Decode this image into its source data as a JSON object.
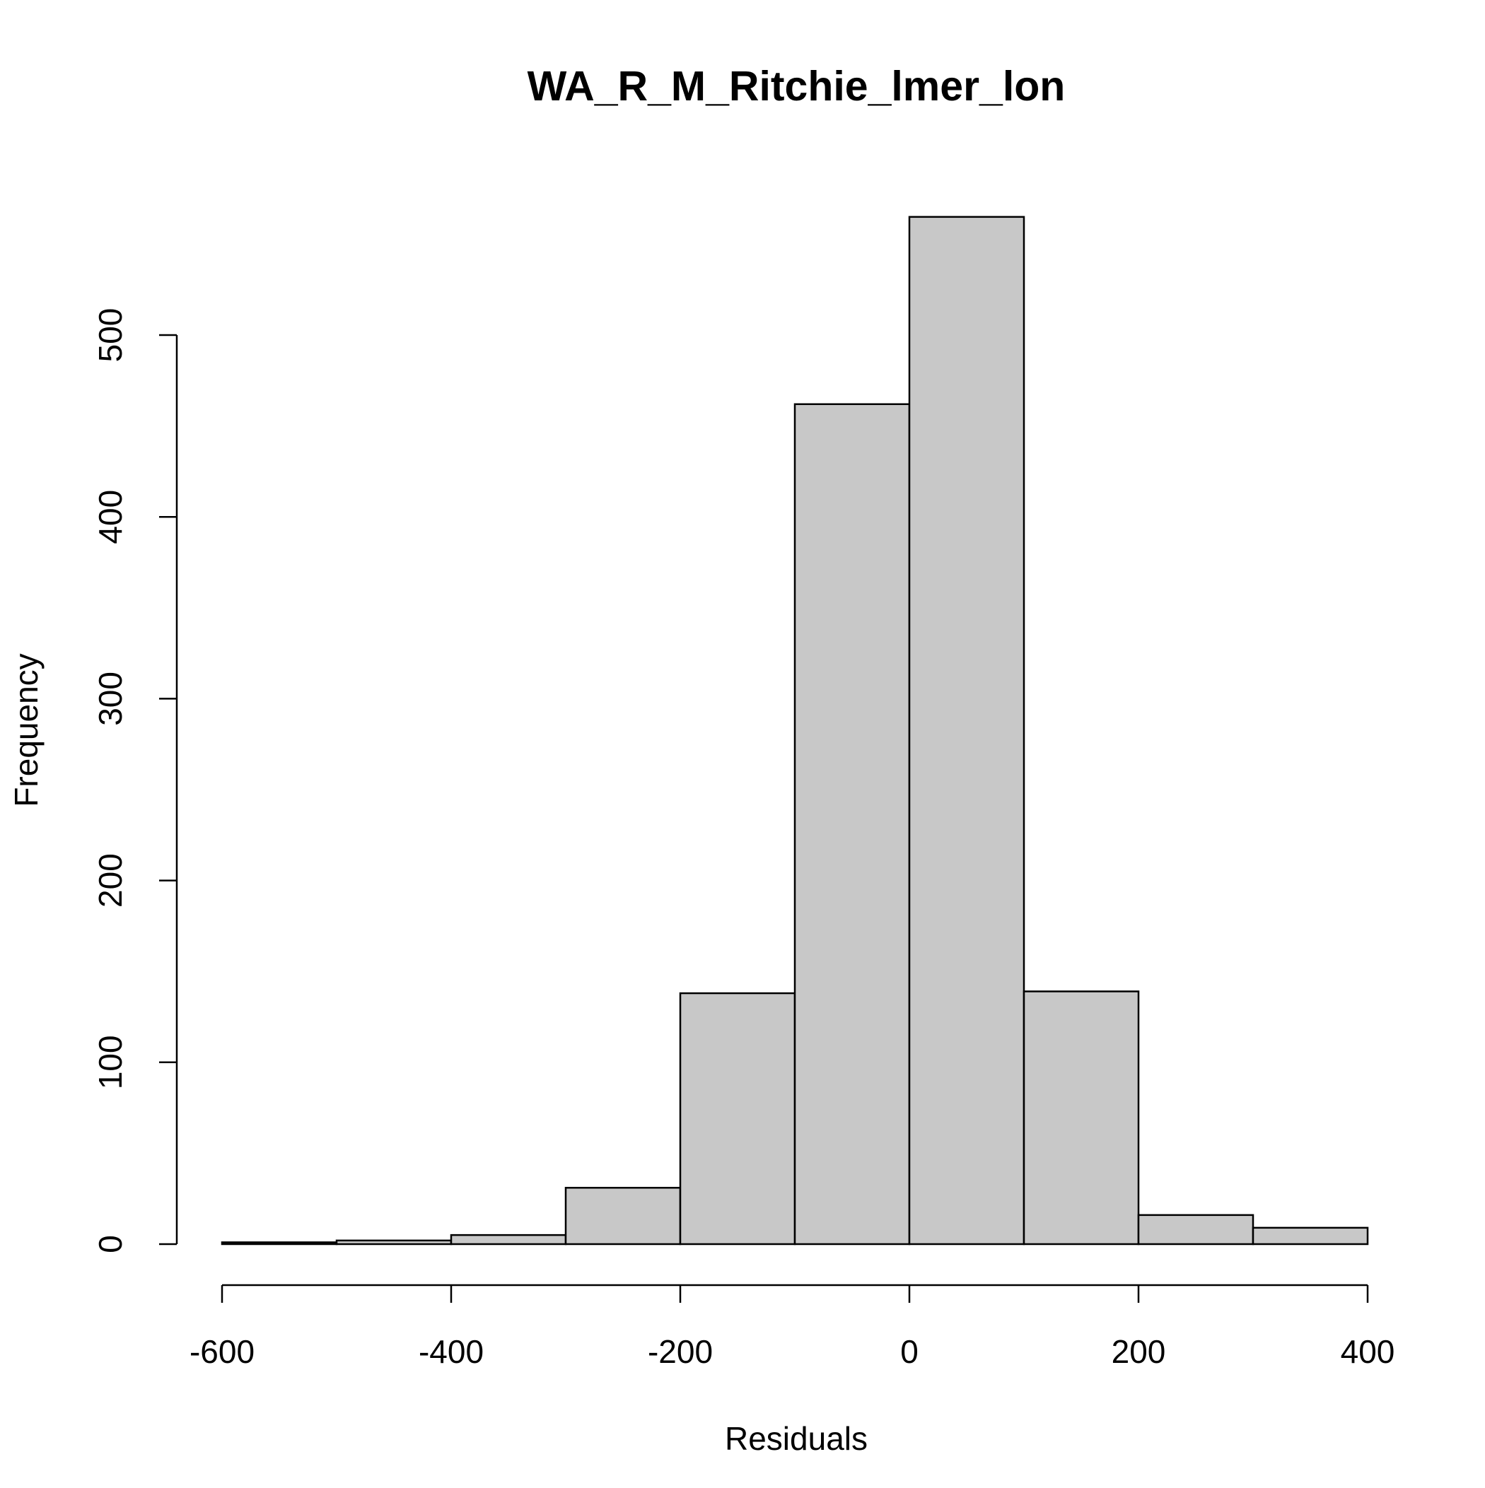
{
  "chart_data": {
    "type": "histogram",
    "title": "WA_R_M_Ritchie_lmer_lon",
    "xlabel": "Residuals",
    "ylabel": "Frequency",
    "bins": [
      {
        "x0": -600,
        "x1": -500,
        "count": 1
      },
      {
        "x0": -500,
        "x1": -400,
        "count": 2
      },
      {
        "x0": -400,
        "x1": -300,
        "count": 5
      },
      {
        "x0": -300,
        "x1": -200,
        "count": 31
      },
      {
        "x0": -200,
        "x1": -100,
        "count": 138
      },
      {
        "x0": -100,
        "x1": 0,
        "count": 462
      },
      {
        "x0": 0,
        "x1": 100,
        "count": 565
      },
      {
        "x0": 100,
        "x1": 200,
        "count": 139
      },
      {
        "x0": 200,
        "x1": 300,
        "count": 16
      },
      {
        "x0": 300,
        "x1": 400,
        "count": 9
      }
    ],
    "xlim": [
      -600,
      400
    ],
    "ylim": [
      0,
      565
    ],
    "x_ticks": [
      -600,
      -400,
      -200,
      0,
      200,
      400
    ],
    "x_tick_labels": [
      "-600",
      "-400",
      "-200",
      "0",
      "200",
      "400"
    ],
    "y_ticks": [
      0,
      100,
      200,
      300,
      400,
      500
    ],
    "y_tick_labels": [
      "0",
      "100",
      "200",
      "300",
      "400",
      "500"
    ],
    "bar_fill": "#c8c8c8",
    "bar_stroke": "#000000",
    "grid": false,
    "legend": "none"
  }
}
